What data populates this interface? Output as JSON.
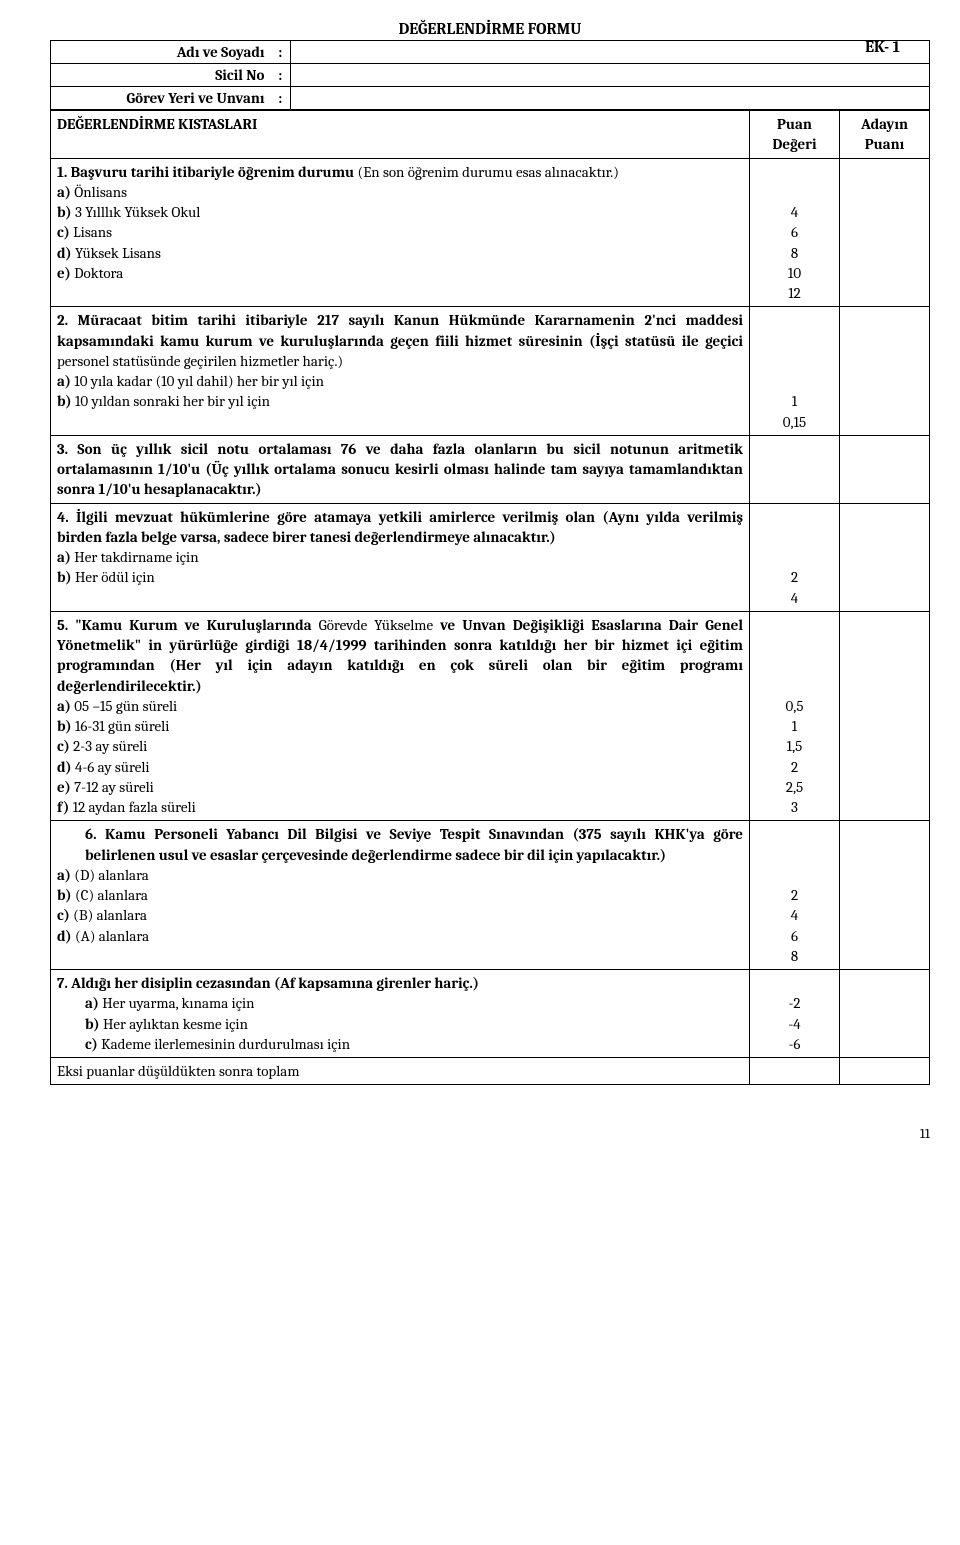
{
  "ek_label": "EK- 1",
  "title": "DEĞERLENDİRME FORMU",
  "header_rows": [
    {
      "label": "Adı ve Soyadı",
      "colon": ":",
      "value": ""
    },
    {
      "label": "Sicil No",
      "colon": ":",
      "value": ""
    },
    {
      "label": "Görev Yeri ve Unvanı",
      "colon": ":",
      "value": ""
    }
  ],
  "columns": {
    "criteria": "DEĞERLENDİRME KISTASLARI",
    "puan": "Puan Değeri",
    "aday": "Adayın Puanı"
  },
  "rows": [
    {
      "text": "1. Başvuru tarihi itibariyle öğrenim durumu   (En son öğrenim durumu esas alınacaktır.)",
      "bold_prefix": "1. Başvuru tarihi itibariyle öğrenim durumu",
      "rest": "   (En son öğrenim durumu esas alınacaktır.)",
      "lines": [
        {
          "label": "a)",
          "text": "Önlisans",
          "puan": "4"
        },
        {
          "label": "b)",
          "text": "3 Yılllık Yüksek Okul",
          "puan": "6"
        },
        {
          "label": "c)",
          "text": "Lisans",
          "puan": "8"
        },
        {
          "label": "d)",
          "text": "Yüksek Lisans",
          "puan": "10"
        },
        {
          "label": "e)",
          "text": "Doktora",
          "puan": "12"
        }
      ]
    },
    {
      "text": "2. Müracaat bitim tarihi itibariyle 217 sayılı Kanun Hükmünde Kararnamenin 2'nci maddesi kapsamındaki kamu kurum ve kuruluşlarında geçen fiili hizmet süresinin (İşçi statüsü ile geçici personel statüsünde geçirilen hizmetler hariç.)",
      "bold_prefix": "2. Müracaat bitim tarihi itibariyle 217 sayılı Kanun Hükmünde Kararnamenin 2'nci maddesi kapsamındaki kamu kurum ve kuruluşlarında geçen fiili hizmet süresinin (İşçi statüsü ile geçici",
      "rest": " personel statüsünde geçirilen hizmetler hariç.)",
      "lines": [
        {
          "label": "a)",
          "text": "10 yıla kadar (10 yıl dahil) her bir yıl için",
          "puan": "1"
        },
        {
          "label": "b)",
          "text": "10 yıldan sonraki her bir yıl için",
          "puan": "0,15"
        }
      ]
    },
    {
      "text": "3. Son üç yıllık sicil notu ortalaması 76 ve daha fazla olanların  bu sicil notunun aritmetik ortalamasının 1/10'u (Üç yıllık ortalama sonucu kesirli olması halinde tam sayıya tamamlandıktan sonra 1/10'u hesaplanacaktır.)",
      "full_bold": true,
      "lines": []
    },
    {
      "text": "4. İlgili mevzuat hükümlerine göre atamaya yetkili amirlerce verilmiş olan (Aynı yılda verilmiş birden fazla belge varsa, sadece birer tanesi değerlendirmeye alınacaktır.)",
      "full_bold": true,
      "lines": [
        {
          "label": "a)",
          "text": "Her takdirname için",
          "puan": "2"
        },
        {
          "label": "b)",
          "text": "Her ödül için",
          "puan": "4"
        }
      ]
    },
    {
      "text": "5. \"Kamu Kurum ve Kuruluşlarında Görevde Yükselme ve Unvan Değişikliği Esaslarına Dair  Genel Yönetmelik\" in  yürürlüğe girdiği 18/4/1999 tarihinden sonra katıldığı her bir hizmet içi eğitim programından (Her yıl için adayın katıldığı en çok süreli olan bir eğitim programı değerlendirilecektir.)",
      "mixed": true,
      "parts": [
        {
          "t": "5. \"Kamu Kurum ve Kuruluşlarında",
          "b": true
        },
        {
          "t": " Görevde Yükselme",
          "b": false
        },
        {
          "t": " ve Unvan Değişikliği Esaslarına Dair  Genel Yönetmelik\" in  yürürlüğe girdiği 18/4/1999 tarihinden sonra katıldığı her bir hizmet içi eğitim programından (Her yıl için adayın katıldığı en çok süreli olan bir eğitim programı değerlendirilecektir.)",
          "b": true
        }
      ],
      "lines": [
        {
          "label": "a)",
          "text": "05 –15 gün süreli",
          "puan": "0,5"
        },
        {
          "label": "b)",
          "text": "16-31 gün süreli",
          "puan": "1"
        },
        {
          "label": "c)",
          "text": "2-3 ay süreli",
          "puan": "1,5"
        },
        {
          "label": "d)",
          "text": "4-6 ay süreli",
          "puan": "2"
        },
        {
          "label": "e)",
          "text": "7-12 ay süreli",
          "puan": "2,5"
        },
        {
          "label": "f)",
          "text": "12 aydan fazla süreli",
          "puan": "3"
        }
      ]
    },
    {
      "text": "6. Kamu Personeli Yabancı Dil Bilgisi ve Seviye Tespit Sınavından (375 sayılı KHK'ya göre belirlenen usul ve esaslar çerçevesinde değerlendirme sadece bir dil için yapılacaktır.)",
      "full_bold": true,
      "indent_header": true,
      "lines": [
        {
          "label": "a)",
          "text": "(D) alanlara",
          "puan": "2"
        },
        {
          "label": "b)",
          "text": "(C) alanlara",
          "puan": "4"
        },
        {
          "label": "c)",
          "text": "(B) alanlara",
          "puan": "6"
        },
        {
          "label": "d)",
          "text": "(A) alanlara",
          "puan": "8"
        }
      ]
    },
    {
      "text": "7. Aldığı her disiplin cezasından (Af kapsamına girenler hariç.)",
      "full_bold": true,
      "indent_lines": true,
      "lines": [
        {
          "label": "a)",
          "text": "Her uyarma,  kınama için",
          "puan": "-2"
        },
        {
          "label": "b)",
          "text": "Her aylıktan kesme için",
          "puan": "-4"
        },
        {
          "label": "c)",
          "text": "Kademe ilerlemesinin durdurulması için",
          "puan": "-6"
        }
      ]
    }
  ],
  "footer_row": "Eksi puanlar düşüldükten sonra toplam",
  "page_number": "11"
}
